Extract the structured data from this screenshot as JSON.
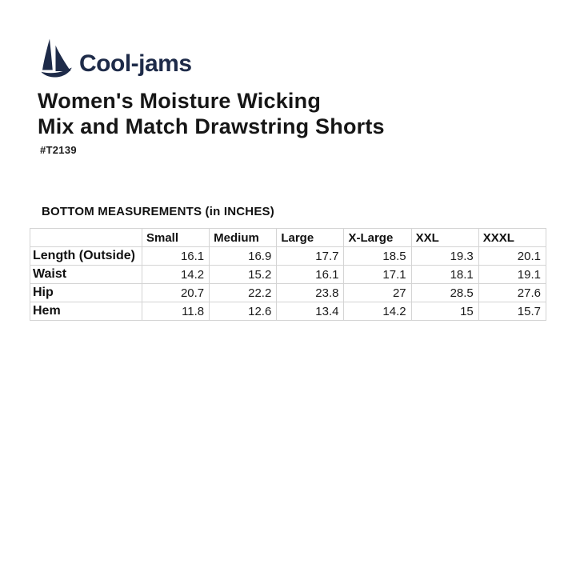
{
  "brand": {
    "name": "Cool-jams",
    "icon": "sailboat-icon",
    "color": "#1e2b49"
  },
  "product": {
    "title_lines": [
      "Women's Moisture Wicking",
      "Mix and Match Drawstring Shorts"
    ],
    "sku": "#T2139"
  },
  "chart_data": {
    "type": "table",
    "title": "BOTTOM MEASUREMENTS (in INCHES)",
    "columns": [
      "Small",
      "Medium",
      "Large",
      "X-Large",
      "XXL",
      "XXXL"
    ],
    "rows": [
      {
        "label": "Length (Outside)",
        "values": [
          16.1,
          16.9,
          17.7,
          18.5,
          19.3,
          20.1
        ]
      },
      {
        "label": "Waist",
        "values": [
          14.2,
          15.2,
          16.1,
          17.1,
          18.1,
          19.1
        ]
      },
      {
        "label": "Hip",
        "values": [
          20.7,
          22.2,
          23.8,
          27,
          28.5,
          27.6
        ]
      },
      {
        "label": "Hem",
        "values": [
          11.8,
          12.6,
          13.4,
          14.2,
          15,
          15.7
        ]
      }
    ]
  },
  "colors": {
    "brand_navy": "#1e2b49",
    "text": "#141414",
    "table_border": "#d4d4d4",
    "background": "#ffffff"
  }
}
